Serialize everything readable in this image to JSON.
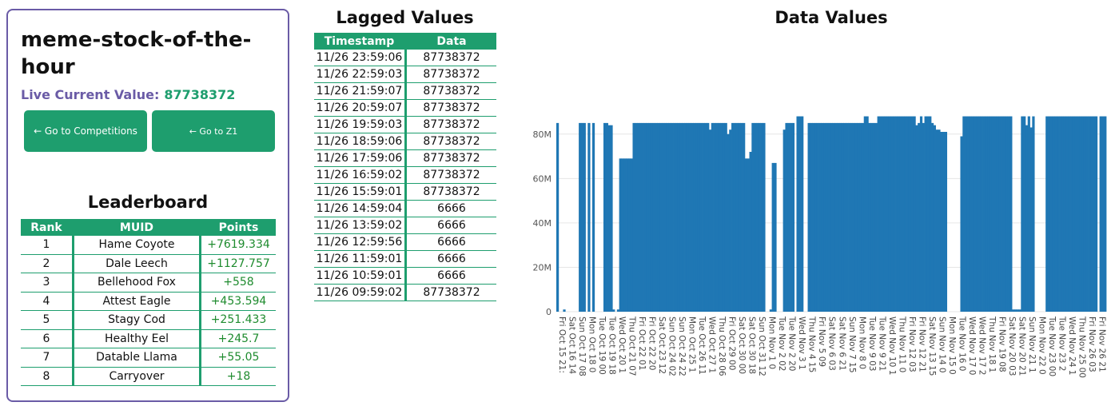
{
  "stock": {
    "title": "meme-stock-of-the-hour",
    "live_label": "Live Current Value:",
    "live_value": "87738372"
  },
  "buttons": {
    "competitions": "← Go to Competitions",
    "z1": "← Go to Z1"
  },
  "leaderboard": {
    "title": "Leaderboard",
    "headers": [
      "Rank",
      "MUID",
      "Points"
    ],
    "rows": [
      [
        "1",
        "Hame Coyote",
        "+7619.334"
      ],
      [
        "2",
        "Dale Leech",
        "+1127.757"
      ],
      [
        "3",
        "Bellehood Fox",
        "+558"
      ],
      [
        "4",
        "Attest Eagle",
        "+453.594"
      ],
      [
        "5",
        "Stagy Cod",
        "+251.433"
      ],
      [
        "6",
        "Healthy Eel",
        "+245.7"
      ],
      [
        "7",
        "Datable Llama",
        "+55.05"
      ],
      [
        "8",
        "Carryover",
        "+18"
      ]
    ]
  },
  "lagged": {
    "title": "Lagged Values",
    "headers": [
      "Timestamp",
      "Data"
    ],
    "rows": [
      [
        "11/26 23:59:06",
        "87738372"
      ],
      [
        "11/26 22:59:03",
        "87738372"
      ],
      [
        "11/26 21:59:07",
        "87738372"
      ],
      [
        "11/26 20:59:07",
        "87738372"
      ],
      [
        "11/26 19:59:03",
        "87738372"
      ],
      [
        "11/26 18:59:06",
        "87738372"
      ],
      [
        "11/26 17:59:06",
        "87738372"
      ],
      [
        "11/26 16:59:02",
        "87738372"
      ],
      [
        "11/26 15:59:01",
        "87738372"
      ],
      [
        "11/26 14:59:04",
        "6666"
      ],
      [
        "11/26 13:59:02",
        "6666"
      ],
      [
        "11/26 12:59:56",
        "6666"
      ],
      [
        "11/26 11:59:01",
        "6666"
      ],
      [
        "11/26 10:59:01",
        "6666"
      ],
      [
        "11/26 09:59:02",
        "87738372"
      ]
    ]
  },
  "chart_data": {
    "type": "bar",
    "title": "Data Values",
    "xlabel": "",
    "ylabel": "",
    "ylim": [
      0,
      90000000
    ],
    "y_ticks": [
      "0",
      "20M",
      "40M",
      "60M",
      "80M"
    ],
    "grid": true,
    "color": "#1f77b4",
    "x_tick_labels": [
      "Fri Oct 15 21:",
      "Sat Oct 16 14",
      "Sun Oct 17 08",
      "Mon Oct 18 0",
      "Tue Oct 19 00",
      "Tue Oct 19 18",
      "Wed Oct 20 1",
      "Thu Oct 21 07",
      "Fri Oct 22 01",
      "Fri Oct 22 20",
      "Sat Oct 23 12",
      "Sun Oct 24 02",
      "Sun Oct 24 22",
      "Mon Oct 25 1",
      "Tue Oct 26 11",
      "Wed Oct 27 1",
      "Thu Oct 28 06",
      "Fri Oct 29 00",
      "Sat Oct 30 00",
      "Sat Oct 30 18",
      "Sun Oct 31 12",
      "Mon Nov 1 0",
      "Tue Nov 2 02",
      "Tue Nov 2 20",
      "Wed Nov 3 1",
      "Thu Nov 4 15",
      "Fri Nov 5 09",
      "Sat Nov 6 03",
      "Sat Nov 6 21",
      "Sun Nov 7 15",
      "Mon Nov 8 0",
      "Tue Nov 9 03",
      "Tue Nov 9 21",
      "Wed Nov 10 1",
      "Thu Nov 11 0",
      "Fri Nov 12 03",
      "Fri Nov 12 21",
      "Sat Nov 13 15",
      "Sun Nov 14 0",
      "Mon Nov 15 0",
      "Tue Nov 16 0",
      "Wed Nov 17 0",
      "Wed Nov 17 2",
      "Thu Nov 18 1",
      "Fri Nov 19 08",
      "Sat Nov 20 03",
      "Sat Nov 20 21",
      "Sun Nov 21 1",
      "Mon Nov 22 0",
      "Tue Nov 23 00",
      "Tue Nov 23 2",
      "Wed Nov 24 1",
      "Thu Nov 25 00",
      "Fri Nov 26 03",
      "Fri Nov 26 21"
    ],
    "values": [
      85,
      0,
      0,
      1,
      0,
      0,
      0,
      0,
      0,
      0,
      85,
      85,
      85,
      0,
      85,
      0,
      85,
      0,
      0,
      0,
      0,
      85,
      85,
      84,
      84,
      1,
      0,
      1,
      69,
      69,
      69,
      69,
      69,
      69,
      85,
      85,
      85,
      85,
      85,
      85,
      85,
      85,
      85,
      85,
      85,
      85,
      85,
      85,
      85,
      85,
      85,
      85,
      85,
      85,
      85,
      85,
      85,
      85,
      85,
      85,
      85,
      85,
      85,
      85,
      85,
      85,
      85,
      85,
      82,
      85,
      85,
      85,
      85,
      85,
      85,
      85,
      80,
      82,
      85,
      85,
      85,
      85,
      85,
      85,
      69,
      69,
      72,
      85,
      85,
      85,
      85,
      85,
      85,
      0,
      0,
      1,
      67,
      67,
      0,
      0,
      0,
      82,
      85,
      85,
      85,
      85,
      0,
      88,
      88,
      88,
      0,
      0,
      85,
      85,
      85,
      85,
      85,
      85,
      85,
      85,
      85,
      85,
      85,
      85,
      85,
      85,
      85,
      85,
      85,
      85,
      85,
      85,
      85,
      85,
      85,
      85,
      85,
      88,
      88,
      85,
      85,
      85,
      85,
      88,
      88,
      88,
      88,
      88,
      88,
      88,
      88,
      88,
      88,
      88,
      88,
      88,
      88,
      88,
      88,
      88,
      84,
      85,
      88,
      85,
      88,
      88,
      88,
      85,
      84,
      82,
      82,
      81,
      81,
      81,
      0,
      0,
      0,
      0,
      0,
      0,
      79,
      88,
      88,
      88,
      88,
      88,
      88,
      88,
      88,
      88,
      88,
      88,
      88,
      88,
      88,
      88,
      88,
      88,
      88,
      88,
      88,
      88,
      88,
      1,
      1,
      1,
      1,
      88,
      88,
      84,
      88,
      83,
      88,
      0,
      0,
      0,
      0,
      0,
      88,
      88,
      88,
      88,
      88,
      88,
      88,
      88,
      88,
      88,
      88,
      88,
      88,
      88,
      88,
      88,
      88,
      88,
      88,
      88,
      88,
      88,
      88,
      0,
      88,
      88,
      88
    ],
    "value_unit": "M"
  }
}
